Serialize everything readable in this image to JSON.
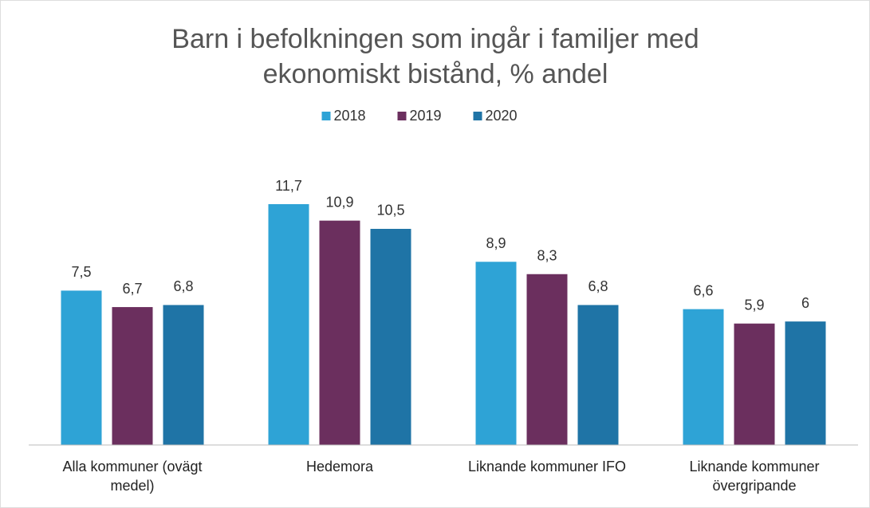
{
  "chart_data": {
    "type": "bar",
    "title": "Barn i befolkningen som ingår i familjer med ekonomiskt bistånd, % andel",
    "categories": [
      "Alla kommuner (ovägt medel)",
      "Hedemora",
      "Liknande kommuner IFO",
      "Liknande kommuner övergripande"
    ],
    "series": [
      {
        "name": "2018",
        "color": "#2ea3d6",
        "values": [
          7.5,
          11.7,
          8.9,
          6.6
        ],
        "value_labels": [
          "7,5",
          "11,7",
          "8,9",
          "6,6"
        ]
      },
      {
        "name": "2019",
        "color": "#6b2f5e",
        "values": [
          6.7,
          10.9,
          8.3,
          5.9
        ],
        "value_labels": [
          "6,7",
          "10,9",
          "8,3",
          "5,9"
        ]
      },
      {
        "name": "2020",
        "color": "#1f74a6",
        "values": [
          6.8,
          10.5,
          6.8,
          6
        ],
        "value_labels": [
          "6,8",
          "10,5",
          "6,8",
          "6"
        ]
      }
    ],
    "legend": "top"
  }
}
